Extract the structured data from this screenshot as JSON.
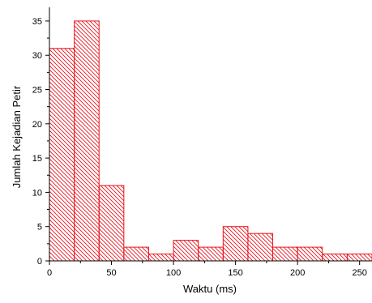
{
  "chart_data": {
    "type": "bar",
    "style": "histogram",
    "bin_width": 20,
    "bins": [
      {
        "start": 0,
        "end": 20,
        "count": 31
      },
      {
        "start": 20,
        "end": 40,
        "count": 35
      },
      {
        "start": 40,
        "end": 60,
        "count": 11
      },
      {
        "start": 60,
        "end": 80,
        "count": 2
      },
      {
        "start": 80,
        "end": 100,
        "count": 1
      },
      {
        "start": 100,
        "end": 120,
        "count": 3
      },
      {
        "start": 120,
        "end": 140,
        "count": 2
      },
      {
        "start": 140,
        "end": 160,
        "count": 5
      },
      {
        "start": 160,
        "end": 180,
        "count": 4
      },
      {
        "start": 180,
        "end": 200,
        "count": 2
      },
      {
        "start": 200,
        "end": 220,
        "count": 2
      },
      {
        "start": 220,
        "end": 240,
        "count": 1
      },
      {
        "start": 240,
        "end": 260,
        "count": 1
      }
    ],
    "xlabel": "Waktu (ms)",
    "ylabel": "Jumlah Kejadian Petir",
    "xlim": [
      0,
      260
    ],
    "ylim": [
      0,
      37
    ],
    "x_ticks": [
      "0",
      "50",
      "100",
      "150",
      "200",
      "250"
    ],
    "y_ticks": [
      "0",
      "5",
      "10",
      "15",
      "20",
      "25",
      "30",
      "35"
    ],
    "bar_fill": "hatched",
    "bar_color": "#e8141e",
    "grid": false
  }
}
